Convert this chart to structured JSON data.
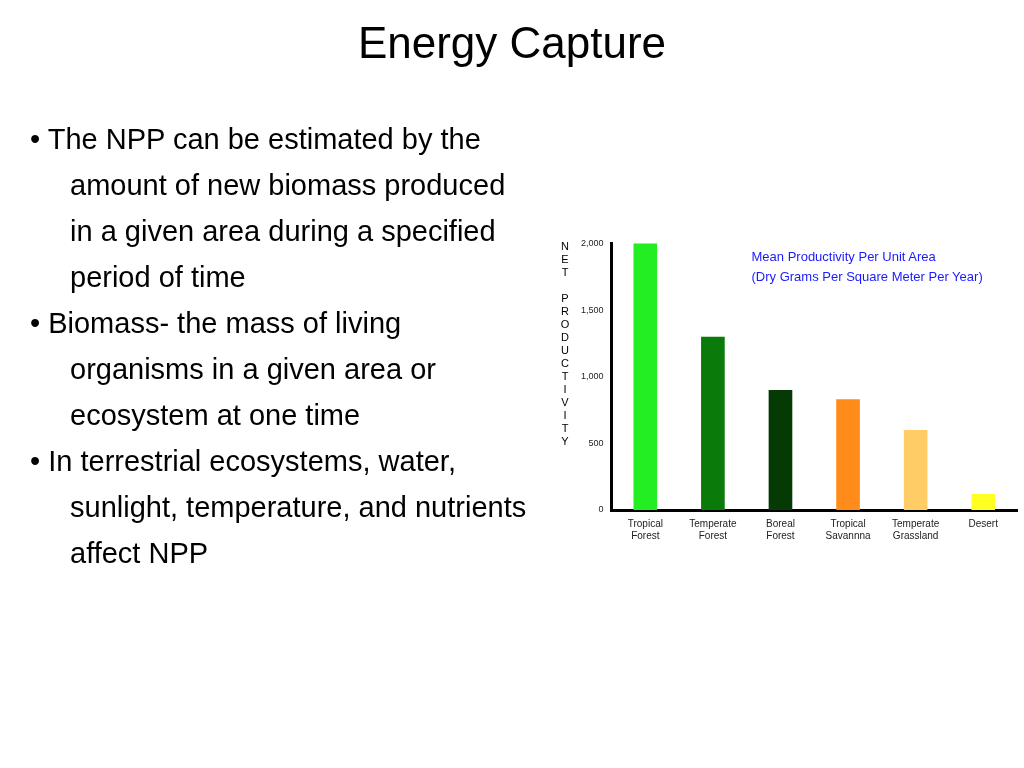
{
  "chart_data": {
    "type": "bar",
    "title": "Energy Capture",
    "subtitle": "Mean Productivity Per Unit Area\n(Dry Grams Per Square Meter Per Year)",
    "ylabel": "NET PRODUCTIVITY",
    "categories": [
      "Tropical Forest",
      "Temperate Forest",
      "Boreal Forest",
      "Tropical Savannna",
      "Temperate Grassland",
      "Desert"
    ],
    "values": [
      2000,
      1300,
      900,
      830,
      600,
      120
    ],
    "colors": [
      "#22ee22",
      "#0a7a0a",
      "#053a05",
      "#ff8c1a",
      "#ffcc66",
      "#ffff22"
    ],
    "ylim": [
      0,
      2000
    ],
    "yticks": [
      0,
      500,
      {
        "value": 1000,
        "label": "1,000"
      },
      {
        "value": 1500,
        "label": "1,500"
      },
      {
        "value": 2000,
        "label": "2,000"
      }
    ],
    "grid": false,
    "legend": false,
    "annotations": [
      "• The NPP can be estimated by the amount of new biomass produced in a given area during a specified period of time",
      "• Biomass- the mass of living organisms in a given area or ecosystem at one time",
      "• In terrestrial ecosystems, water, sunlight, temperature, and nutrients affect NPP"
    ]
  }
}
